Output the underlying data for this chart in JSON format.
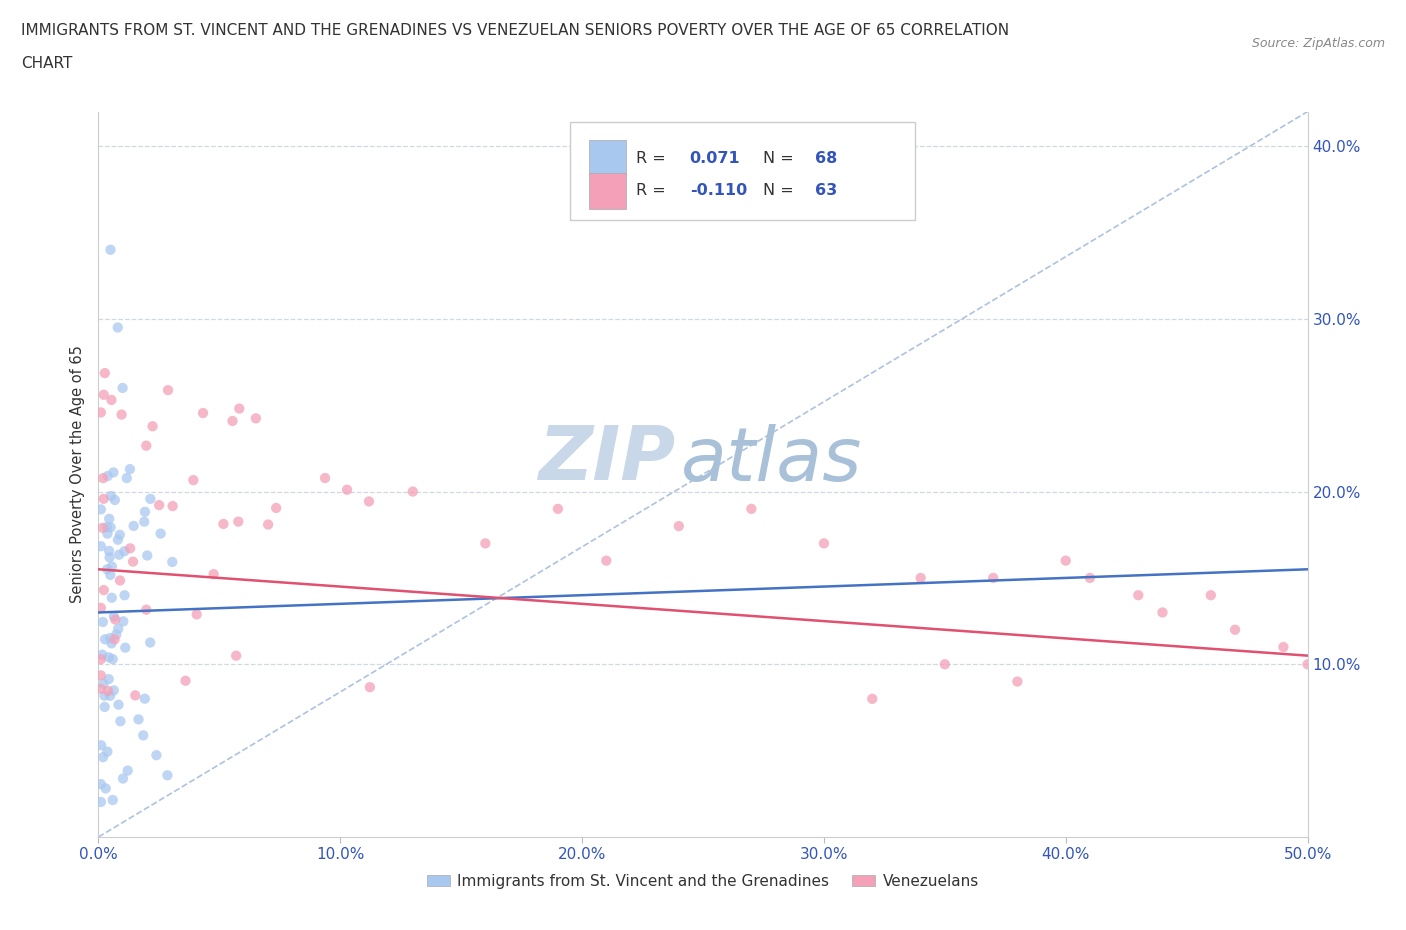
{
  "title_line1": "IMMIGRANTS FROM ST. VINCENT AND THE GRENADINES VS VENEZUELAN SENIORS POVERTY OVER THE AGE OF 65 CORRELATION",
  "title_line2": "CHART",
  "source": "Source: ZipAtlas.com",
  "ylabel": "Seniors Poverty Over the Age of 65",
  "xlim": [
    0.0,
    0.5
  ],
  "ylim": [
    0.0,
    0.42
  ],
  "xtick_labels": [
    "0.0%",
    "10.0%",
    "20.0%",
    "30.0%",
    "40.0%",
    "50.0%"
  ],
  "ytick_labels_right": [
    "10.0%",
    "20.0%",
    "30.0%",
    "40.0%"
  ],
  "R_vincent": 0.071,
  "N_vincent": 68,
  "R_venezuela": -0.11,
  "N_venezuela": 63,
  "color_vincent": "#a8c8f0",
  "color_venezuela": "#f4a0b8",
  "trendline_color_vincent": "#4472c4",
  "trendline_color_venezuela": "#e05070",
  "diagonal_color": "#a0b8d8",
  "grid_color": "#d0d8e0",
  "watermark_zip_color": "#c8d8e8",
  "watermark_atlas_color": "#a8c0d8",
  "legend_label_vincent": "Immigrants from St. Vincent and the Grenadines",
  "legend_label_venezuela": "Venezuelans",
  "tick_label_color": "#3355bb",
  "title_color": "#333333",
  "source_color": "#888888",
  "ylabel_color": "#333333"
}
